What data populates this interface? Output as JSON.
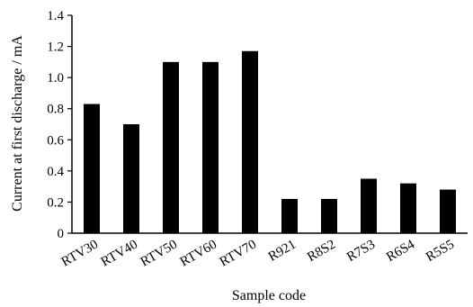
{
  "chart_data": {
    "type": "bar",
    "categories": [
      "RTV30",
      "RTV40",
      "RTV50",
      "RTV60",
      "RTV70",
      "R921",
      "R8S2",
      "R7S3",
      "R6S4",
      "R5S5"
    ],
    "values": [
      0.83,
      0.7,
      1.1,
      1.1,
      1.17,
      0.22,
      0.22,
      0.35,
      0.32,
      0.28
    ],
    "xlabel": "Sample code",
    "ylabel": "Current at first discharge / mA",
    "ylim": [
      0,
      1.4
    ],
    "yticks": [
      "0",
      "0.2",
      "0.4",
      "0.6",
      "0.8",
      "1.0",
      "1.2",
      "1.4"
    ],
    "bar_color": "#000000",
    "grid": false,
    "legend": "none"
  }
}
